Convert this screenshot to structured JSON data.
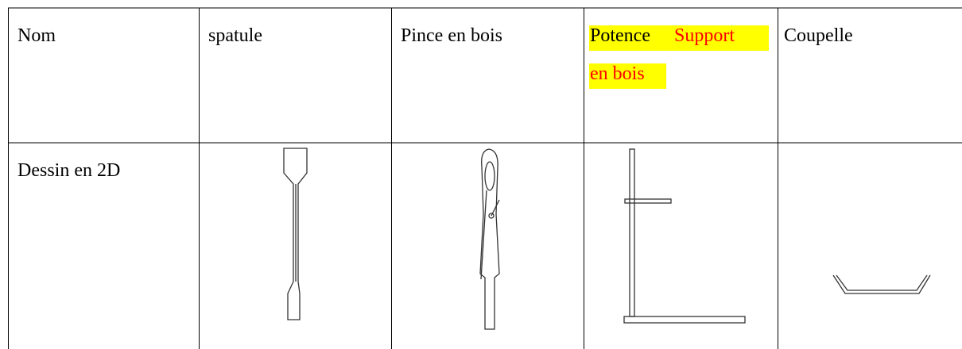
{
  "table": {
    "rows": [
      [
        "Nom",
        "spatule",
        "Pince en bois",
        [
          "Potence",
          "Support",
          "en bois"
        ],
        "Coupelle"
      ],
      [
        "Dessin en 2D"
      ]
    ]
  }
}
